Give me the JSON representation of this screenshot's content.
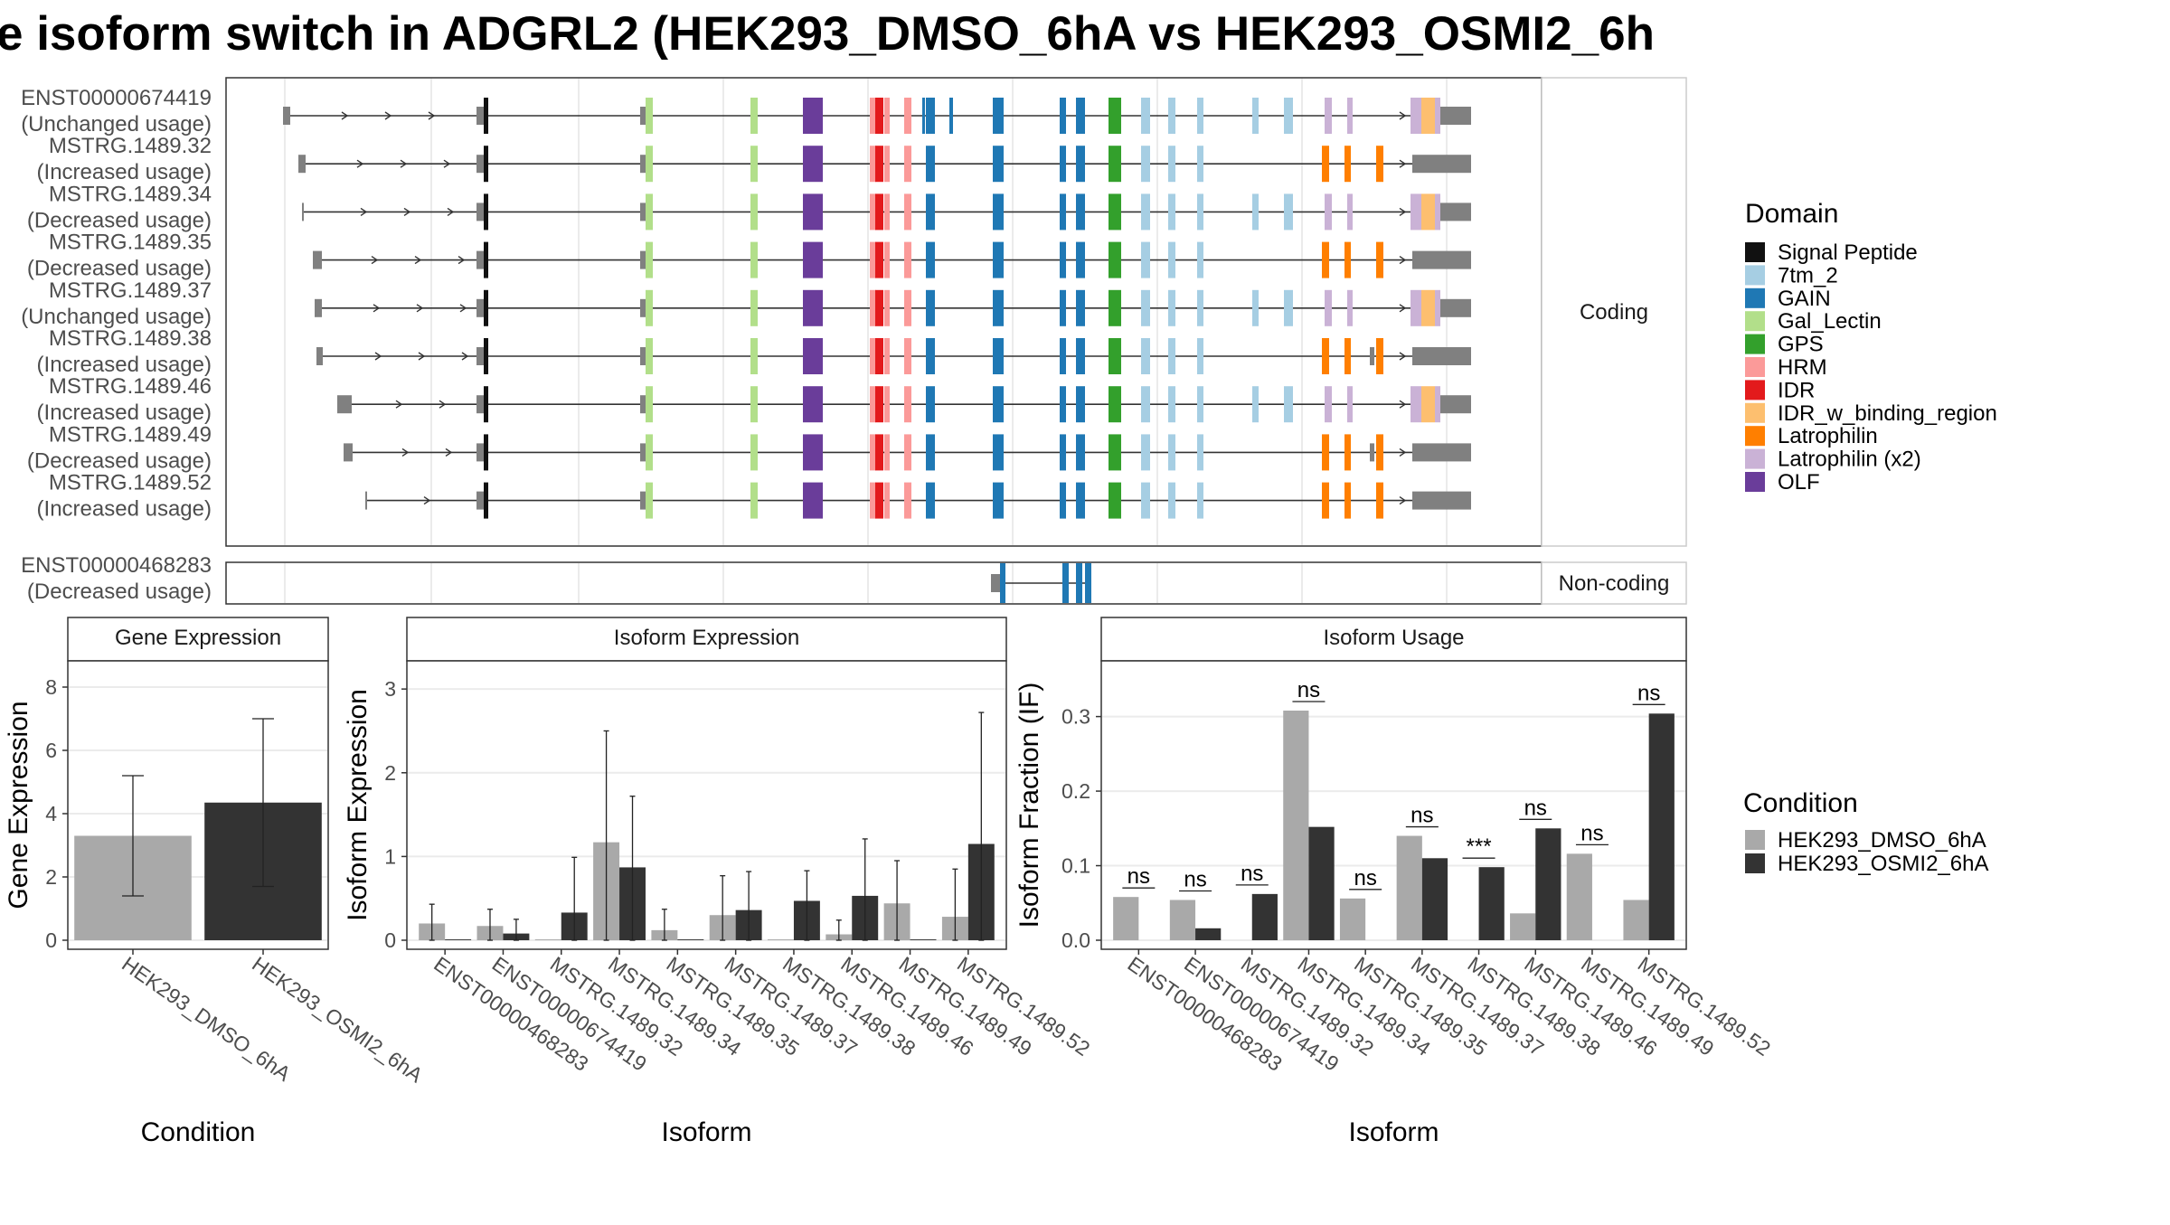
{
  "title": "e isoform switch in ADGRL2 (HEK293_DMSO_6hA vs HEK293_OSMI2_6h",
  "structure_panel": {
    "coding_strip": "Coding",
    "noncoding_strip": "Non-coding",
    "coding": [
      {
        "name": "ENST00000674419",
        "usage": "(Unchanged usage)"
      },
      {
        "name": "MSTRG.1489.32",
        "usage": "(Increased usage)"
      },
      {
        "name": "MSTRG.1489.34",
        "usage": "(Decreased usage)"
      },
      {
        "name": "MSTRG.1489.35",
        "usage": "(Decreased usage)"
      },
      {
        "name": "MSTRG.1489.37",
        "usage": "(Unchanged usage)"
      },
      {
        "name": "MSTRG.1489.38",
        "usage": "(Increased usage)"
      },
      {
        "name": "MSTRG.1489.46",
        "usage": "(Increased usage)"
      },
      {
        "name": "MSTRG.1489.49",
        "usage": "(Decreased usage)"
      },
      {
        "name": "MSTRG.1489.52",
        "usage": "(Increased usage)"
      }
    ],
    "noncoding": [
      {
        "name": "ENST00000468283",
        "usage": "(Decreased usage)"
      }
    ]
  },
  "domain_legend": {
    "title": "Domain",
    "items": [
      {
        "label": "Signal Peptide",
        "color": "#111111"
      },
      {
        "label": "7tm_2",
        "color": "#a6cee3"
      },
      {
        "label": "GAIN",
        "color": "#1f78b4"
      },
      {
        "label": "Gal_Lectin",
        "color": "#b2df8a"
      },
      {
        "label": "GPS",
        "color": "#33a02c"
      },
      {
        "label": "HRM",
        "color": "#fb9a99"
      },
      {
        "label": "IDR",
        "color": "#e31a1c"
      },
      {
        "label": "IDR_w_binding_region",
        "color": "#fdbf6f"
      },
      {
        "label": "Latrophilin",
        "color": "#ff7f00"
      },
      {
        "label": "Latrophilin (x2)",
        "color": "#cab2d6"
      },
      {
        "label": "OLF",
        "color": "#6a3d9a"
      }
    ]
  },
  "condition_legend": {
    "title": "Condition",
    "items": [
      {
        "label": "HEK293_DMSO_6hA",
        "color": "#a9a9a9"
      },
      {
        "label": "HEK293_OSMI2_6hA",
        "color": "#333333"
      }
    ]
  },
  "chart_data": [
    {
      "type": "bar",
      "strip": "Gene Expression",
      "xlabel": "Condition",
      "ylabel": "Gene Expression",
      "ylim": [
        0,
        8.6
      ],
      "yticks": [
        "0",
        "2",
        "4",
        "6",
        "8"
      ],
      "categories": [
        "HEK293_DMSO_6hA",
        "HEK293_OSMI2_6hA"
      ],
      "values": [
        3.3,
        4.35
      ],
      "err_low": [
        1.4,
        1.7
      ],
      "err_high": [
        5.2,
        7.0
      ]
    },
    {
      "type": "bar",
      "strip": "Isoform Expression",
      "xlabel": "Isoform",
      "ylabel": "Isoform Expression",
      "ylim": [
        0,
        3.25
      ],
      "yticks": [
        "0",
        "1",
        "2",
        "3"
      ],
      "categories": [
        "ENST00000468283",
        "ENST00000674419",
        "MSTRG.1489.32",
        "MSTRG.1489.34",
        "MSTRG.1489.35",
        "MSTRG.1489.37",
        "MSTRG.1489.38",
        "MSTRG.1489.46",
        "MSTRG.1489.49",
        "MSTRG.1489.52"
      ],
      "series": [
        {
          "name": "HEK293_DMSO_6hA",
          "values": [
            0.2,
            0.17,
            0.01,
            1.17,
            0.12,
            0.3,
            0.01,
            0.07,
            0.44,
            0.28
          ],
          "err_low": [
            0.0,
            0.0,
            0.0,
            0.0,
            0.0,
            0.0,
            0.0,
            0.0,
            0.0,
            0.0
          ],
          "err_high": [
            0.43,
            0.37,
            0.0,
            2.5,
            0.37,
            0.77,
            0.0,
            0.24,
            0.95,
            0.85
          ]
        },
        {
          "name": "HEK293_OSMI2_6hA",
          "values": [
            0.01,
            0.08,
            0.33,
            0.87,
            0.01,
            0.36,
            0.47,
            0.53,
            0.01,
            1.15
          ],
          "err_low": [
            0.0,
            0.0,
            0.0,
            0.0,
            0.0,
            0.0,
            0.0,
            0.0,
            0.0,
            0.0
          ],
          "err_high": [
            0.0,
            0.25,
            0.99,
            1.72,
            0.0,
            0.82,
            0.83,
            1.21,
            0.0,
            2.72
          ]
        }
      ]
    },
    {
      "type": "bar",
      "strip": "Isoform Usage",
      "xlabel": "Isoform",
      "ylabel": "Isoform Fraction (IF)",
      "ylim": [
        0,
        0.365
      ],
      "yticks": [
        "0.0",
        "0.1",
        "0.2",
        "0.3"
      ],
      "categories": [
        "ENST00000468283",
        "ENST00000674419",
        "MSTRG.1489.32",
        "MSTRG.1489.34",
        "MSTRG.1489.35",
        "MSTRG.1489.37",
        "MSTRG.1489.38",
        "MSTRG.1489.46",
        "MSTRG.1489.49",
        "MSTRG.1489.52"
      ],
      "series": [
        {
          "name": "HEK293_DMSO_6hA",
          "values": [
            0.058,
            0.054,
            0.0,
            0.308,
            0.056,
            0.14,
            0.0,
            0.036,
            0.116,
            0.054
          ]
        },
        {
          "name": "HEK293_OSMI2_6hA",
          "values": [
            0.0,
            0.016,
            0.062,
            0.152,
            0.0,
            0.11,
            0.098,
            0.15,
            0.0,
            0.304
          ]
        }
      ],
      "significance": [
        "ns",
        "ns",
        "ns",
        "ns",
        "ns",
        "ns",
        "***",
        "ns",
        "ns",
        "ns"
      ]
    }
  ]
}
